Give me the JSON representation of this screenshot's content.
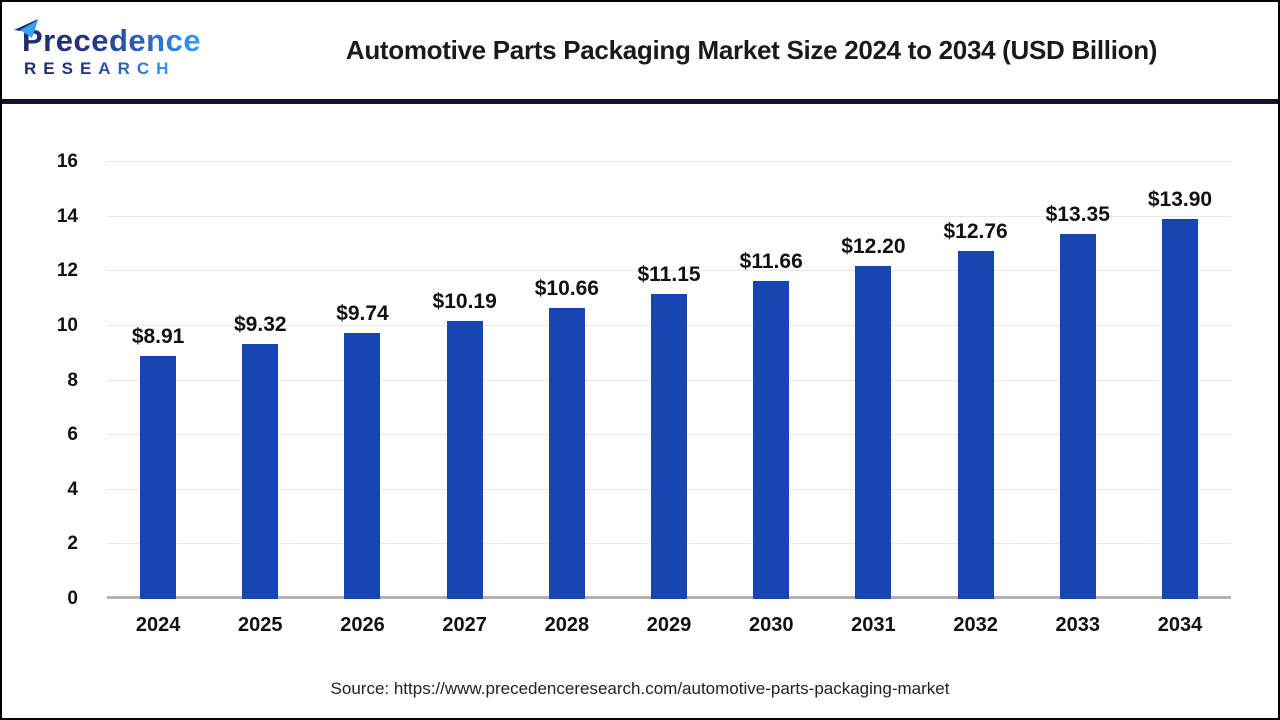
{
  "header": {
    "logo": {
      "line1": "Precedence",
      "line2": "RESEARCH",
      "color_dark": "#1e2a6d",
      "color_light": "#2f8ae4"
    },
    "title": "Automotive Parts Packaging Market Size 2024 to 2034 (USD Billion)",
    "divider_color": "#12132f"
  },
  "chart_data": {
    "type": "bar",
    "title": "Automotive Parts Packaging Market Size 2024 to 2034 (USD Billion)",
    "categories": [
      "2024",
      "2025",
      "2026",
      "2027",
      "2028",
      "2029",
      "2030",
      "2031",
      "2032",
      "2033",
      "2034"
    ],
    "values": [
      8.91,
      9.32,
      9.74,
      10.19,
      10.66,
      11.15,
      11.66,
      12.2,
      12.76,
      13.35,
      13.9
    ],
    "value_labels": [
      "$8.91",
      "$9.32",
      "$9.74",
      "$10.19",
      "$10.66",
      "$11.15",
      "$11.66",
      "$12.20",
      "$12.76",
      "$13.35",
      "$13.90"
    ],
    "xlabel": "",
    "ylabel": "",
    "unit": "USD Billion",
    "ylim": [
      0,
      16
    ],
    "ytick_step": 2,
    "grid": true,
    "legend": false,
    "bar_color": "#1745b2",
    "gridline_color": "#e9e9e9",
    "axis_line_color": "#b3b3b3"
  },
  "footer": {
    "source": "Source: https://www.precedenceresearch.com/automotive-parts-packaging-market"
  }
}
